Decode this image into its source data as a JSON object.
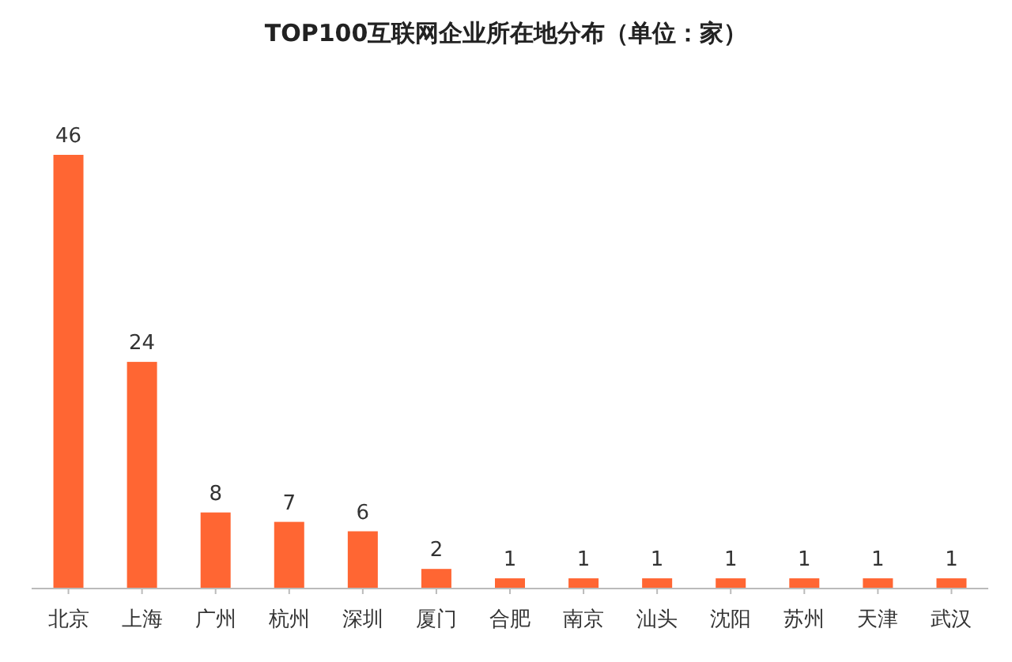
{
  "chart_data": {
    "type": "bar",
    "title": "TOP100互联网企业所在地分布（单位：家）",
    "categories": [
      "北京",
      "上海",
      "广州",
      "杭州",
      "深圳",
      "厦门",
      "合肥",
      "南京",
      "汕头",
      "沈阳",
      "苏州",
      "天津",
      "武汉"
    ],
    "values": [
      46,
      24,
      8,
      7,
      6,
      2,
      1,
      1,
      1,
      1,
      1,
      1,
      1
    ],
    "color": "#ff6633",
    "data_labels": true
  }
}
